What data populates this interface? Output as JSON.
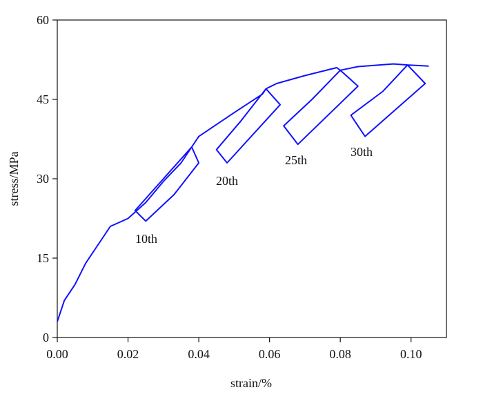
{
  "chart_data": {
    "type": "line",
    "xlabel": "strain/%",
    "ylabel": "stress/MPa",
    "x": [
      0,
      0.002,
      0.005,
      0.008,
      0.012,
      0.015,
      0.02,
      0.025,
      0.03,
      0.035,
      0.038,
      0.04,
      0.033,
      0.025,
      0.022,
      0.03,
      0.038,
      0.04,
      0.05,
      0.058,
      0.059,
      0.063,
      0.048,
      0.045,
      0.052,
      0.059,
      0.062,
      0.07,
      0.079,
      0.08,
      0.085,
      0.068,
      0.064,
      0.072,
      0.08,
      0.085,
      0.095,
      0.099,
      0.104,
      0.087,
      0.083,
      0.092,
      0.099,
      0.105
    ],
    "series": [
      {
        "name": "stress",
        "color": "#1010ff",
        "values": [
          3,
          7,
          10,
          14,
          18,
          21,
          22.5,
          25.5,
          29.5,
          33,
          36,
          33,
          27,
          22,
          24,
          30,
          36,
          38,
          42.5,
          46,
          47,
          44,
          33,
          35.5,
          41,
          47,
          48,
          49.5,
          51,
          50.5,
          47.5,
          36.5,
          40,
          45,
          50.5,
          51.2,
          51.7,
          51.5,
          48,
          38,
          42,
          46.5,
          51.5,
          51.3
        ]
      }
    ],
    "annotations": [
      "10th",
      "20th",
      "25th",
      "30th"
    ],
    "xlim": [
      0,
      0.11
    ],
    "ylim": [
      0,
      60
    ],
    "xticks": [
      {
        "value": 0,
        "label": "0.00"
      },
      {
        "value": 0.02,
        "label": "0.02"
      },
      {
        "value": 0.04,
        "label": "0.04"
      },
      {
        "value": 0.06,
        "label": "0.06"
      },
      {
        "value": 0.08,
        "label": "0.08"
      },
      {
        "value": 0.1,
        "label": "0.10"
      }
    ],
    "yticks": [
      0,
      15,
      30,
      45,
      60
    ]
  }
}
